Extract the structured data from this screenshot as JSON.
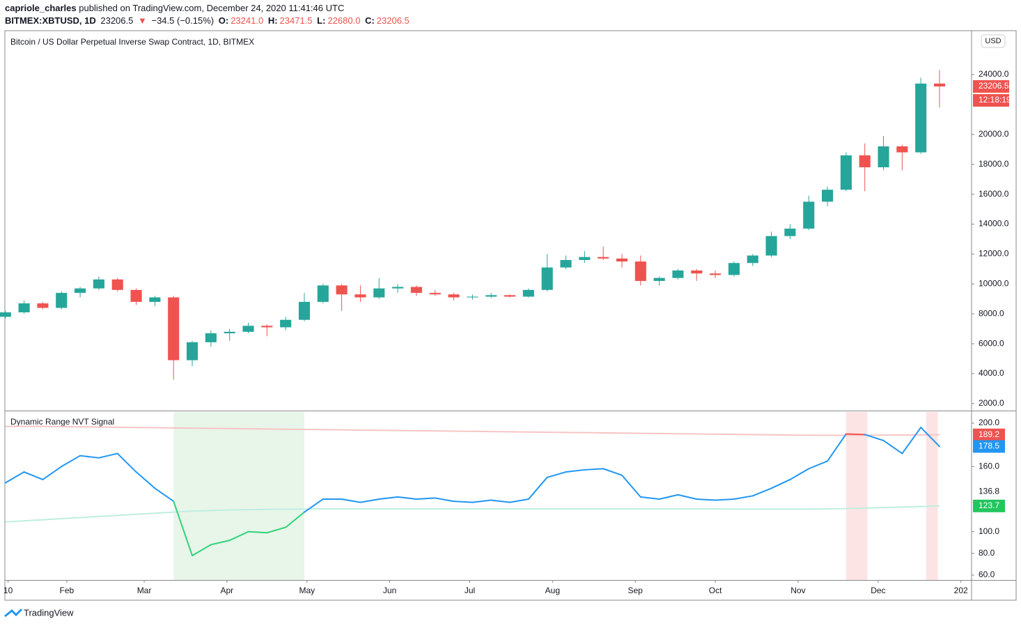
{
  "header": {
    "author": "capriole_charles",
    "published": "published on TradingView.com, December 24, 2020 11:41:46 UTC",
    "symbol": "BITMEX:XBTUSD, 1D",
    "last": "23206.5",
    "arrow": "▼",
    "change": "−34.5 (−0.15%)",
    "open_label": "O:",
    "open": "23241.0",
    "high_label": "H:",
    "high": "23471.5",
    "low_label": "L:",
    "low": "22680.0",
    "close_label": "C:",
    "close": "23206.5"
  },
  "currency_button": "USD",
  "footer": "TradingView",
  "chart_data": [
    {
      "type": "candlestick",
      "title": "Bitcoin / US Dollar Perpetual Inverse Swap Contract, 1D, BITMEX",
      "x": [
        8,
        15,
        22,
        29,
        36,
        43,
        50,
        57,
        64,
        71,
        78,
        85,
        92,
        99,
        106,
        113,
        120,
        127,
        134,
        141,
        148,
        155,
        162,
        169,
        176,
        183,
        190,
        197,
        204,
        211,
        218,
        225,
        232,
        239,
        246,
        253,
        260,
        267,
        274,
        281,
        288,
        295,
        302,
        309,
        316,
        323,
        330,
        337,
        344,
        351,
        358
      ],
      "open": [
        7800,
        8100,
        8700,
        8400,
        9400,
        9700,
        10300,
        9600,
        8800,
        9100,
        4900,
        6100,
        6700,
        6800,
        7200,
        7100,
        7600,
        8800,
        9900,
        9300,
        9100,
        9700,
        9800,
        9400,
        9300,
        9100,
        9150,
        9250,
        9150,
        9600,
        11100,
        11600,
        11800,
        11700,
        11500,
        10200,
        10400,
        10900,
        10700,
        10600,
        11400,
        11900,
        13200,
        13700,
        15500,
        16300,
        18600,
        17800,
        19200,
        18800,
        23400
      ],
      "high": [
        8200,
        8900,
        8800,
        9500,
        9800,
        10500,
        10400,
        9700,
        9200,
        9200,
        6200,
        6900,
        7000,
        7400,
        7300,
        7800,
        9400,
        10000,
        10000,
        9900,
        10400,
        10000,
        9900,
        9600,
        9400,
        9300,
        9400,
        9300,
        9700,
        12000,
        11900,
        12200,
        12500,
        12000,
        11900,
        10500,
        11000,
        11000,
        10900,
        11500,
        12000,
        13500,
        14000,
        15900,
        16500,
        18800,
        19400,
        19900,
        19300,
        23800,
        24300
      ],
      "low": [
        7700,
        8000,
        8300,
        8300,
        9100,
        9600,
        9500,
        8600,
        8500,
        3600,
        4500,
        5800,
        6200,
        6700,
        6500,
        6900,
        7500,
        8700,
        8200,
        8800,
        9000,
        9400,
        9200,
        9200,
        8900,
        8950,
        9050,
        9100,
        9100,
        9500,
        11000,
        11400,
        11600,
        11100,
        9900,
        9900,
        10300,
        10200,
        10400,
        10500,
        11200,
        11800,
        13000,
        13600,
        15200,
        16200,
        16200,
        17600,
        17600,
        18700,
        21800
      ],
      "close": [
        8100,
        8700,
        8400,
        9400,
        9700,
        10300,
        9600,
        8800,
        9100,
        4900,
        6100,
        6700,
        6800,
        7200,
        7100,
        7600,
        8800,
        9900,
        9300,
        9100,
        9700,
        9800,
        9400,
        9300,
        9100,
        9150,
        9250,
        9150,
        9600,
        11100,
        11600,
        11800,
        11700,
        11500,
        10200,
        10400,
        10900,
        10700,
        10600,
        11400,
        11900,
        13200,
        13700,
        15500,
        16300,
        18600,
        17800,
        19200,
        18800,
        23400,
        23206.5
      ],
      "up_color": "#26a69a",
      "down_color": "#ef5350",
      "countdown": "12:18:19",
      "xlim": [
        7.8,
        370
      ],
      "ylim": [
        1529,
        26937
      ],
      "yticks": [
        {
          "value": 2000,
          "label": "2000.0"
        },
        {
          "value": 4000,
          "label": "4000.0"
        },
        {
          "value": 6000,
          "label": "6000.0"
        },
        {
          "value": 8000,
          "label": "8000.0"
        },
        {
          "value": 10000,
          "label": "10000.0"
        },
        {
          "value": 12000,
          "label": "12000.0"
        },
        {
          "value": 14000,
          "label": "14000.0"
        },
        {
          "value": 16000,
          "label": "16000.0"
        },
        {
          "value": 18000,
          "label": "18000.0"
        },
        {
          "value": 20000,
          "label": "20000.0"
        },
        {
          "value": 24000,
          "label": "24000.0"
        }
      ]
    },
    {
      "type": "line",
      "title": "Dynamic Range NVT Signal",
      "x": [
        8,
        15,
        22,
        29,
        36,
        43,
        50,
        57,
        64,
        71,
        78,
        85,
        92,
        99,
        106,
        113,
        120,
        127,
        134,
        141,
        148,
        155,
        162,
        169,
        176,
        183,
        190,
        197,
        204,
        211,
        218,
        225,
        232,
        239,
        246,
        253,
        260,
        267,
        274,
        281,
        288,
        295,
        302,
        309,
        316,
        323,
        330,
        337,
        344,
        351,
        358
      ],
      "series": [
        {
          "color": "#f6c5c5",
          "values": [
            197,
            197,
            197,
            196.8,
            196.6,
            196.4,
            196.2,
            196,
            195.8,
            195.6,
            195.4,
            195.2,
            195,
            194.8,
            194.6,
            194.4,
            194.2,
            194,
            193.8,
            193.6,
            193.4,
            193.2,
            193,
            192.8,
            192.6,
            192.4,
            192.2,
            192,
            191.8,
            191.6,
            191.4,
            191.2,
            191,
            190.8,
            190.6,
            190.4,
            190.2,
            190,
            189.8,
            189.6,
            189.4,
            189.2,
            189,
            188.8,
            188.8,
            188.8,
            188.8,
            189,
            189,
            189.2,
            189.2
          ],
          "label_color": "#ef5350"
        },
        {
          "color": "#bfeee0",
          "values": [
            109,
            110,
            111,
            112,
            113,
            114,
            115,
            116,
            117,
            118,
            119,
            119.5,
            120,
            120.3,
            120.5,
            120.7,
            120.8,
            121,
            121,
            121,
            121,
            121,
            121,
            121,
            121,
            121,
            121,
            121,
            121,
            121,
            121,
            121,
            121,
            121,
            121,
            121,
            121,
            121,
            121,
            120.8,
            120.8,
            120.8,
            120.8,
            120.8,
            121,
            121.3,
            121.7,
            122.2,
            122.7,
            123.2,
            123.7
          ],
          "label_color": "#22c55e"
        },
        {
          "color": "#2196f3",
          "values": [
            145,
            155,
            148,
            160,
            170,
            168,
            172,
            155,
            140,
            128,
            78,
            88,
            92,
            100,
            99,
            104,
            118,
            130,
            130,
            127,
            130,
            132,
            130,
            131,
            128,
            127,
            129,
            127,
            130,
            150,
            155,
            157,
            158,
            152,
            132,
            130,
            134,
            130,
            129,
            130,
            133,
            140,
            148,
            158,
            165,
            190,
            189.5,
            184,
            172,
            196,
            178.5
          ],
          "label_color": "#2196f3"
        }
      ],
      "below_color": "#2fd47a",
      "above_color": "#ef5350",
      "highlights": [
        {
          "from": 71,
          "to": 120,
          "color": "#e8f5e9"
        },
        {
          "from": 323,
          "to": 331,
          "color": "#fde4e4"
        },
        {
          "from": 353,
          "to": 357.4,
          "color": "#fde4e4"
        }
      ],
      "crosshair_value": 136.8,
      "xlim": [
        7.8,
        370
      ],
      "ylim": [
        55.5,
        210.9
      ],
      "yticks": [
        {
          "value": 60,
          "label": "60.0"
        },
        {
          "value": 80,
          "label": "80.0"
        },
        {
          "value": 100,
          "label": "100.0"
        },
        {
          "value": 160,
          "label": "160.0"
        },
        {
          "value": 200,
          "label": "200.0"
        }
      ],
      "xticks": [
        {
          "value": 9,
          "label": "10"
        },
        {
          "value": 31,
          "label": "Feb"
        },
        {
          "value": 60,
          "label": "Mar"
        },
        {
          "value": 91,
          "label": "Apr"
        },
        {
          "value": 121,
          "label": "May"
        },
        {
          "value": 152,
          "label": "Jun"
        },
        {
          "value": 182,
          "label": "Jul"
        },
        {
          "value": 213,
          "label": "Aug"
        },
        {
          "value": 244,
          "label": "Sep"
        },
        {
          "value": 274,
          "label": "Oct"
        },
        {
          "value": 305,
          "label": "Nov"
        },
        {
          "value": 335,
          "label": "Dec"
        },
        {
          "value": 366,
          "label": "202"
        }
      ]
    }
  ]
}
